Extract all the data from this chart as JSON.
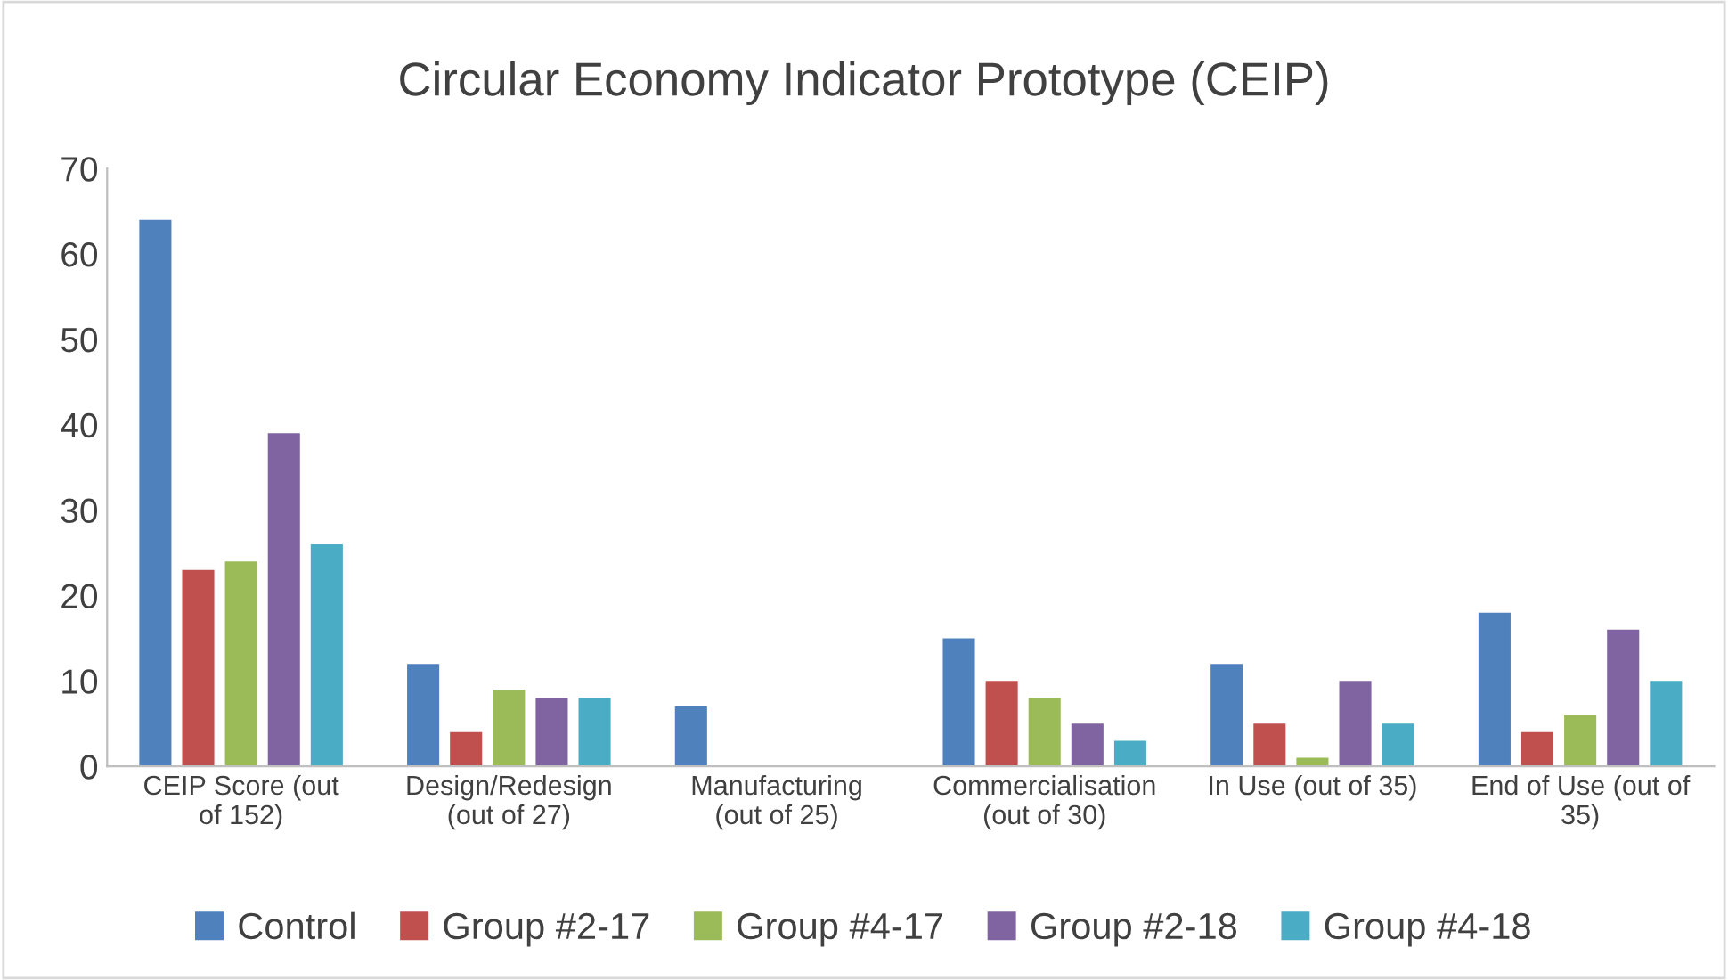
{
  "chart_data": {
    "type": "bar",
    "title": "Circular Economy Indicator Prototype (CEIP)",
    "categories": [
      "CEIP Score (out\nof 152)",
      "Design/Redesign\n(out of 27)",
      "Manufacturing\n(out of 25)",
      "Commercialisation\n(out of 30)",
      "In Use (out of 35)",
      "End of Use (out of\n35)"
    ],
    "series": [
      {
        "name": "Control",
        "color": "#4f81bd",
        "values": [
          64,
          12,
          7,
          15,
          12,
          18
        ]
      },
      {
        "name": "Group #2-17",
        "color": "#c0504d",
        "values": [
          23,
          4,
          0,
          10,
          5,
          4
        ]
      },
      {
        "name": "Group #4-17",
        "color": "#9bbb59",
        "values": [
          24,
          9,
          0,
          8,
          1,
          6
        ]
      },
      {
        "name": "Group #2-18",
        "color": "#8064a2",
        "values": [
          39,
          8,
          0,
          5,
          10,
          16
        ]
      },
      {
        "name": "Group #4-18",
        "color": "#4bacc6",
        "values": [
          26,
          8,
          0,
          3,
          5,
          10
        ]
      }
    ],
    "ylim": [
      0,
      70
    ],
    "yticks": [
      0,
      10,
      20,
      30,
      40,
      50,
      60,
      70
    ],
    "grid": false,
    "legend": "bottom"
  }
}
